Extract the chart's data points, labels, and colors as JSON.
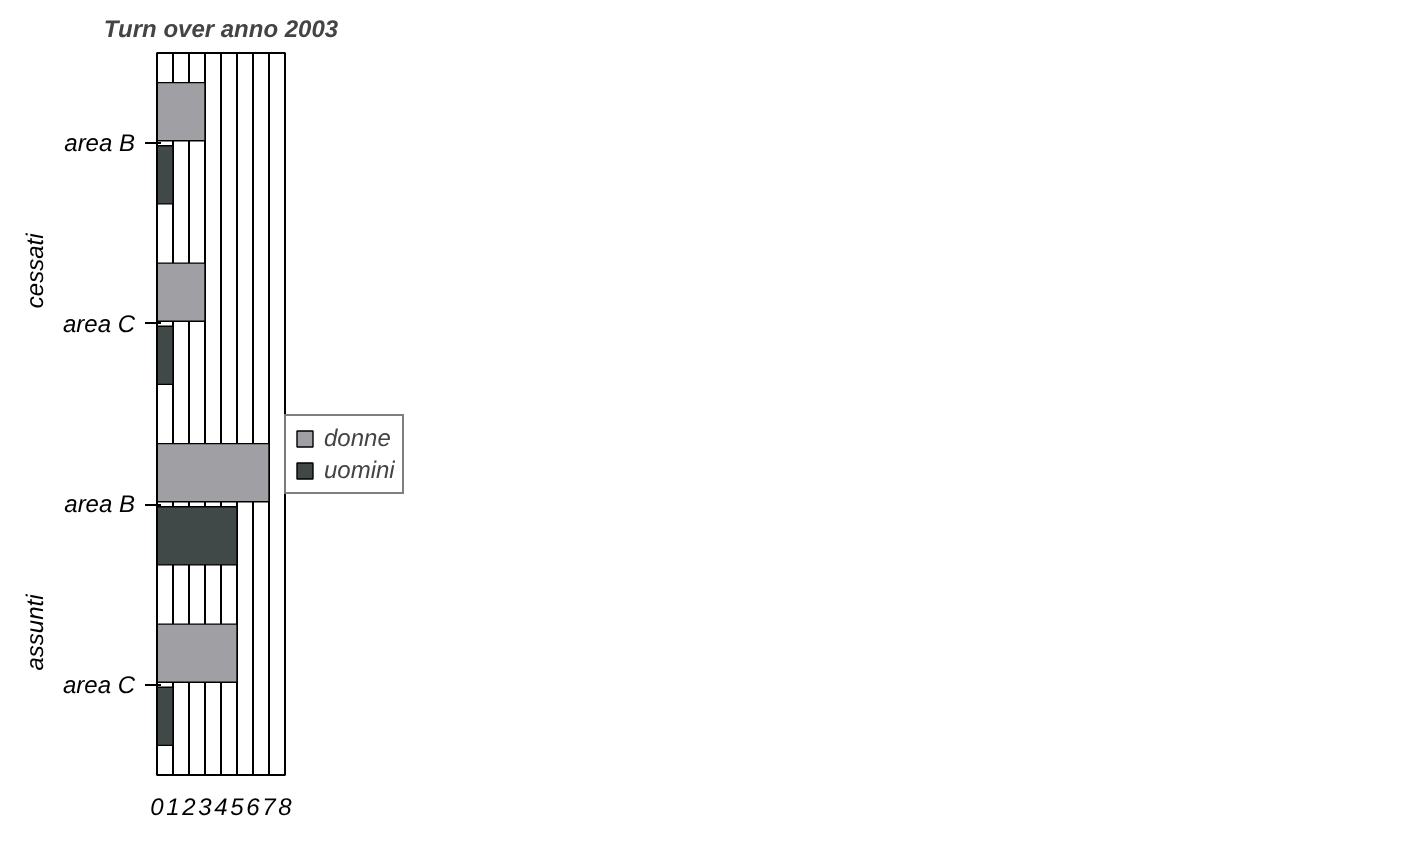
{
  "chart_data": {
    "type": "bar",
    "orientation": "horizontal",
    "title": "Turn over anno 2003",
    "categories": [
      "area B",
      "area C",
      "area B",
      "area C"
    ],
    "series": [
      {
        "name": "donne",
        "color": "#a0a0a4",
        "values": [
          3,
          3,
          7,
          5
        ]
      },
      {
        "name": "uomini",
        "color": "#404848",
        "values": [
          1,
          1,
          5,
          1
        ]
      }
    ],
    "annotations": [
      "cessati",
      "assunti"
    ],
    "xlim": [
      0,
      8
    ],
    "xticks": [
      0,
      1,
      2,
      3,
      4,
      5,
      6,
      7,
      8
    ],
    "grid": "x",
    "legend": "right"
  }
}
